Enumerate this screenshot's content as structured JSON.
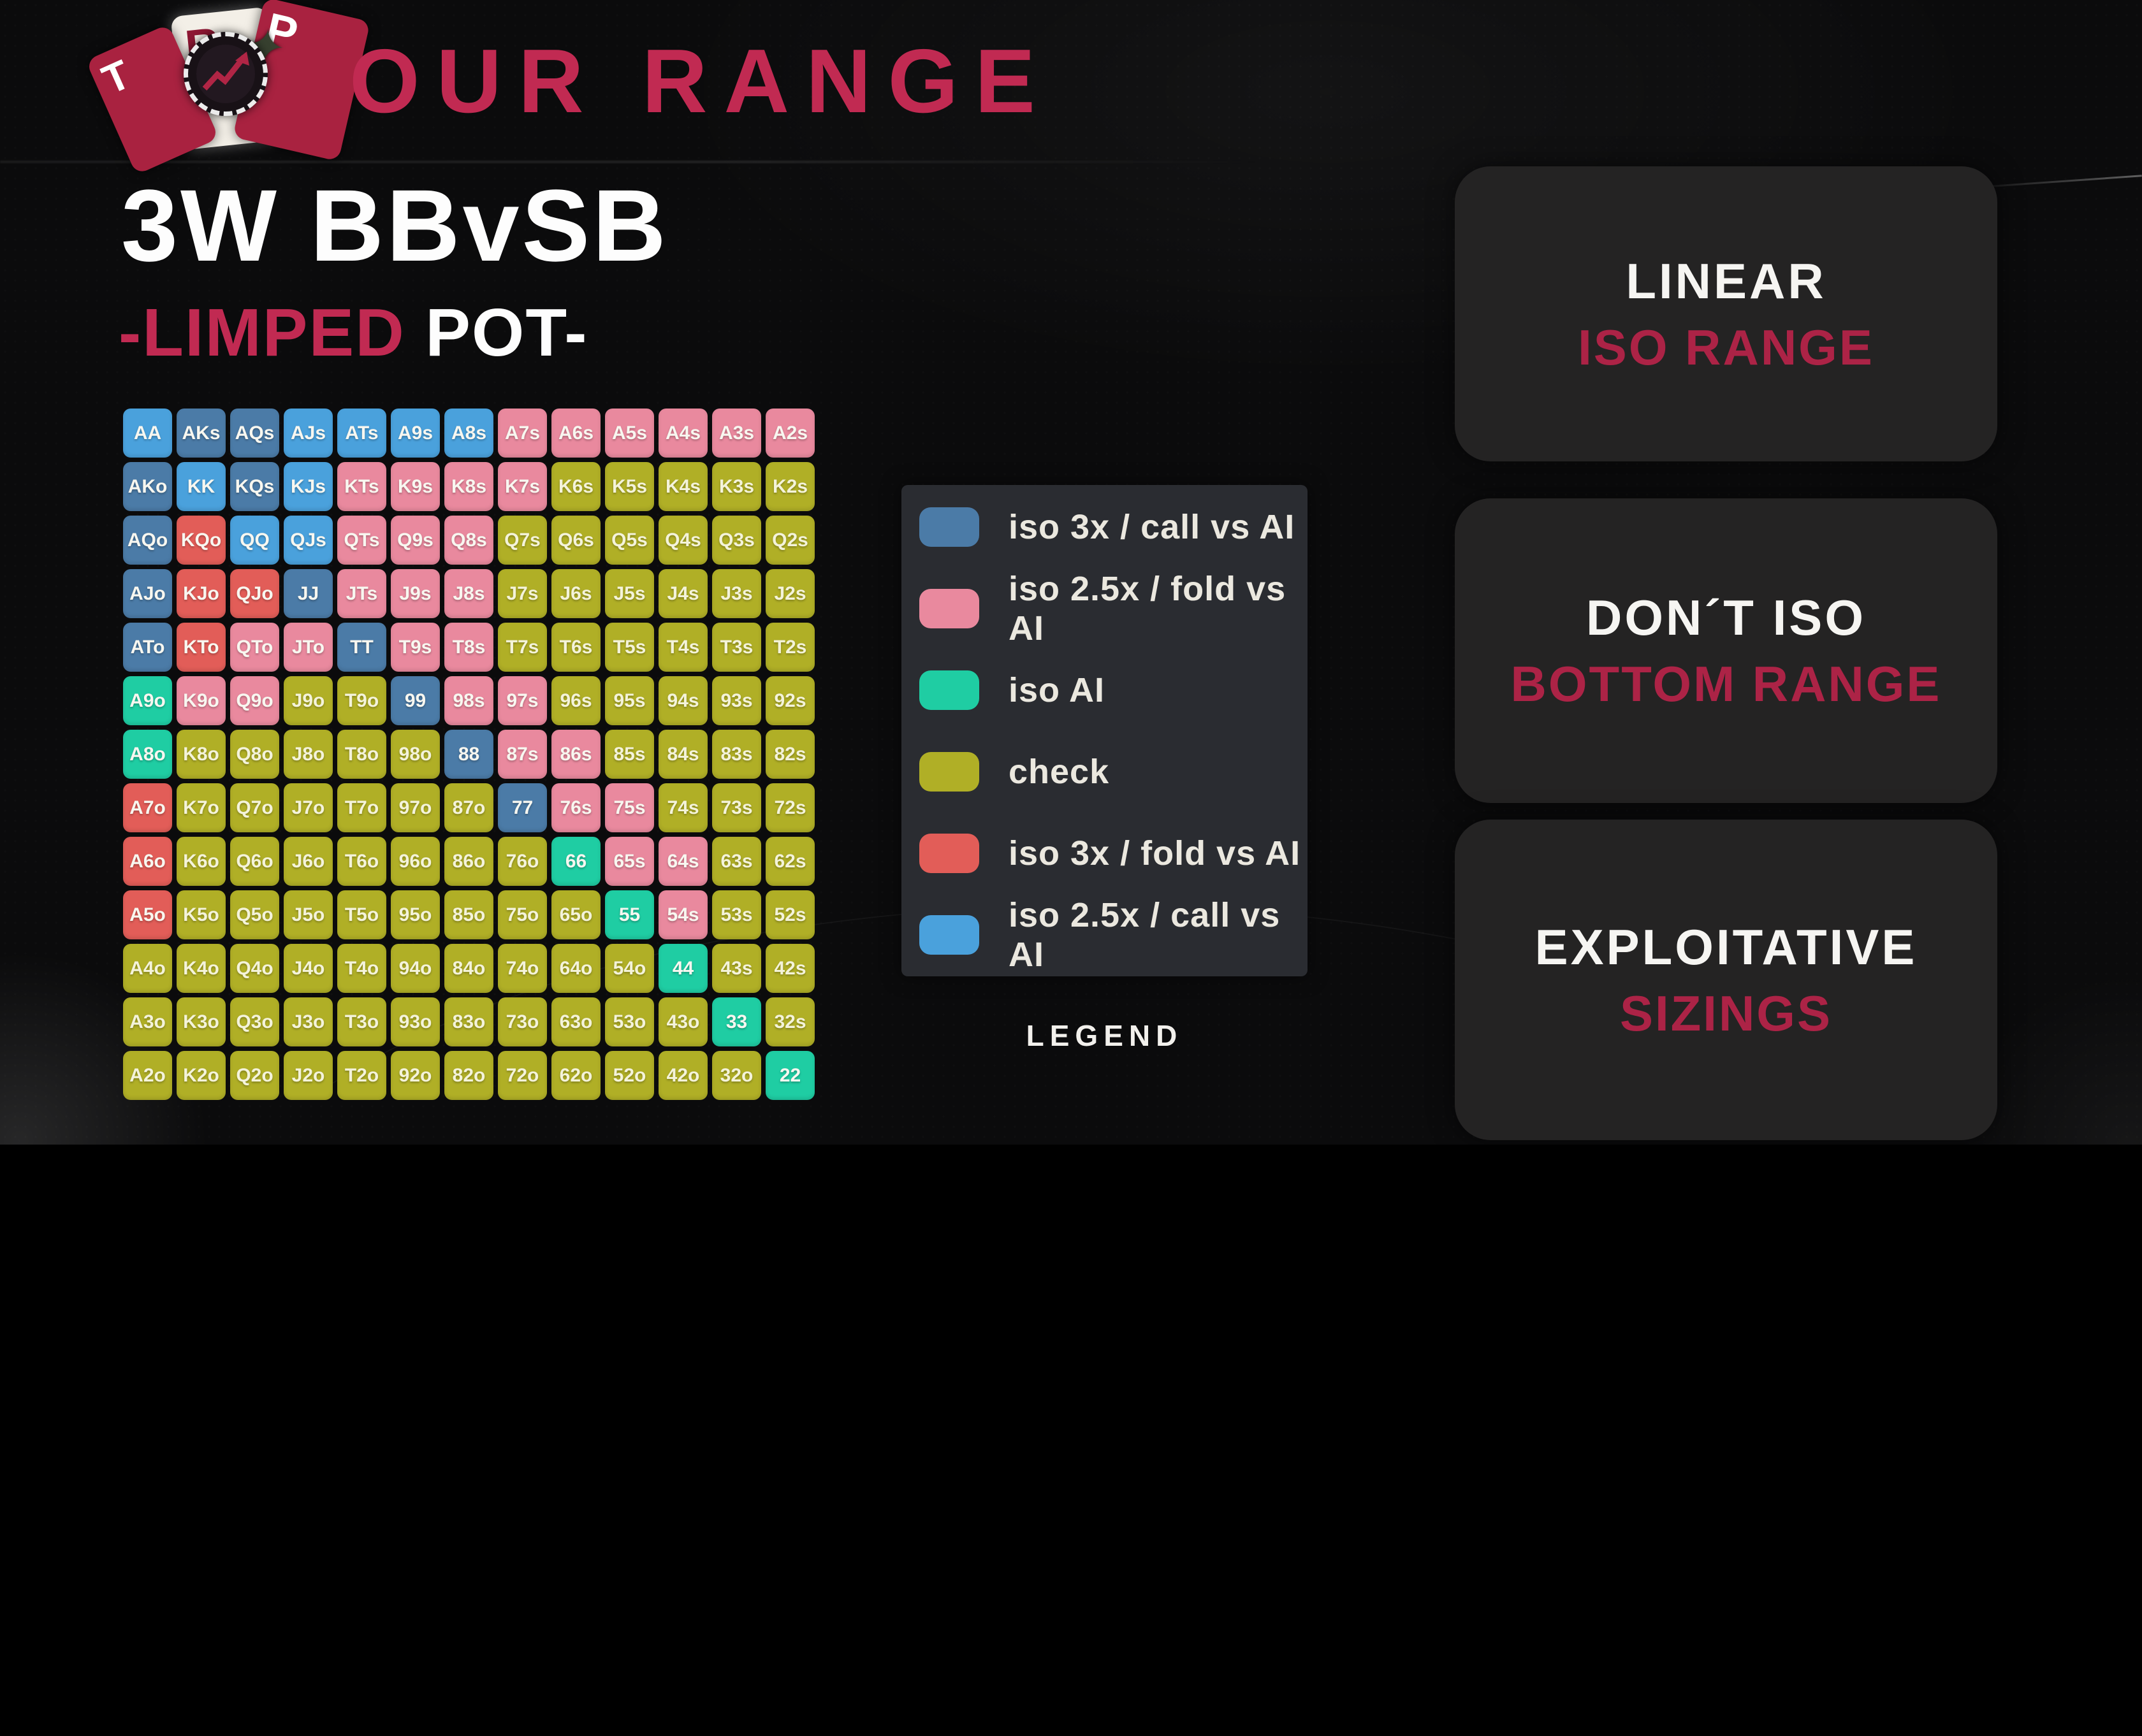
{
  "title": "OUR RANGE",
  "heading": {
    "line1": "3W BBvSB",
    "line2_accent": "-LIMPED",
    "line2_rest": " POT-"
  },
  "logo": {
    "letters": [
      "T",
      "B",
      "P"
    ],
    "chip_icon": "poker-chip-trend-arrow",
    "star_glyph": "✦"
  },
  "colors": {
    "accent": "#c12a52",
    "accent_dark": "#ac2346",
    "iso3x_call": "#4b7ba7",
    "iso25_fold": "#e9899e",
    "iso_ai": "#1fcda3",
    "check": "#b0af26",
    "iso3x_fold": "#e25d58",
    "iso25_call": "#4aa1dc",
    "legend_panel_bg": "#2a2c31",
    "side_box_bg": "#242323",
    "page_bg": "#0b0b0c"
  },
  "grid": {
    "action_colors": {
      "S": "iso3x_call",
      "P": "iso25_fold",
      "T": "iso_ai",
      "C": "check",
      "R": "iso3x_fold",
      "B": "iso25_call"
    },
    "rows": [
      [
        [
          "AA",
          "B"
        ],
        [
          "AKs",
          "S"
        ],
        [
          "AQs",
          "S"
        ],
        [
          "AJs",
          "B"
        ],
        [
          "ATs",
          "B"
        ],
        [
          "A9s",
          "B"
        ],
        [
          "A8s",
          "B"
        ],
        [
          "A7s",
          "P"
        ],
        [
          "A6s",
          "P"
        ],
        [
          "A5s",
          "P"
        ],
        [
          "A4s",
          "P"
        ],
        [
          "A3s",
          "P"
        ],
        [
          "A2s",
          "P"
        ]
      ],
      [
        [
          "AKo",
          "S"
        ],
        [
          "KK",
          "B"
        ],
        [
          "KQs",
          "S"
        ],
        [
          "KJs",
          "B"
        ],
        [
          "KTs",
          "P"
        ],
        [
          "K9s",
          "P"
        ],
        [
          "K8s",
          "P"
        ],
        [
          "K7s",
          "P"
        ],
        [
          "K6s",
          "C"
        ],
        [
          "K5s",
          "C"
        ],
        [
          "K4s",
          "C"
        ],
        [
          "K3s",
          "C"
        ],
        [
          "K2s",
          "C"
        ]
      ],
      [
        [
          "AQo",
          "S"
        ],
        [
          "KQo",
          "R"
        ],
        [
          "QQ",
          "B"
        ],
        [
          "QJs",
          "B"
        ],
        [
          "QTs",
          "P"
        ],
        [
          "Q9s",
          "P"
        ],
        [
          "Q8s",
          "P"
        ],
        [
          "Q7s",
          "C"
        ],
        [
          "Q6s",
          "C"
        ],
        [
          "Q5s",
          "C"
        ],
        [
          "Q4s",
          "C"
        ],
        [
          "Q3s",
          "C"
        ],
        [
          "Q2s",
          "C"
        ]
      ],
      [
        [
          "AJo",
          "S"
        ],
        [
          "KJo",
          "R"
        ],
        [
          "QJo",
          "R"
        ],
        [
          "JJ",
          "S"
        ],
        [
          "JTs",
          "P"
        ],
        [
          "J9s",
          "P"
        ],
        [
          "J8s",
          "P"
        ],
        [
          "J7s",
          "C"
        ],
        [
          "J6s",
          "C"
        ],
        [
          "J5s",
          "C"
        ],
        [
          "J4s",
          "C"
        ],
        [
          "J3s",
          "C"
        ],
        [
          "J2s",
          "C"
        ]
      ],
      [
        [
          "ATo",
          "S"
        ],
        [
          "KTo",
          "R"
        ],
        [
          "QTo",
          "P"
        ],
        [
          "JTo",
          "P"
        ],
        [
          "TT",
          "S"
        ],
        [
          "T9s",
          "P"
        ],
        [
          "T8s",
          "P"
        ],
        [
          "T7s",
          "C"
        ],
        [
          "T6s",
          "C"
        ],
        [
          "T5s",
          "C"
        ],
        [
          "T4s",
          "C"
        ],
        [
          "T3s",
          "C"
        ],
        [
          "T2s",
          "C"
        ]
      ],
      [
        [
          "A9o",
          "T"
        ],
        [
          "K9o",
          "P"
        ],
        [
          "Q9o",
          "P"
        ],
        [
          "J9o",
          "C"
        ],
        [
          "T9o",
          "C"
        ],
        [
          "99",
          "S"
        ],
        [
          "98s",
          "P"
        ],
        [
          "97s",
          "P"
        ],
        [
          "96s",
          "C"
        ],
        [
          "95s",
          "C"
        ],
        [
          "94s",
          "C"
        ],
        [
          "93s",
          "C"
        ],
        [
          "92s",
          "C"
        ]
      ],
      [
        [
          "A8o",
          "T"
        ],
        [
          "K8o",
          "C"
        ],
        [
          "Q8o",
          "C"
        ],
        [
          "J8o",
          "C"
        ],
        [
          "T8o",
          "C"
        ],
        [
          "98o",
          "C"
        ],
        [
          "88",
          "S"
        ],
        [
          "87s",
          "P"
        ],
        [
          "86s",
          "P"
        ],
        [
          "85s",
          "C"
        ],
        [
          "84s",
          "C"
        ],
        [
          "83s",
          "C"
        ],
        [
          "82s",
          "C"
        ]
      ],
      [
        [
          "A7o",
          "R"
        ],
        [
          "K7o",
          "C"
        ],
        [
          "Q7o",
          "C"
        ],
        [
          "J7o",
          "C"
        ],
        [
          "T7o",
          "C"
        ],
        [
          "97o",
          "C"
        ],
        [
          "87o",
          "C"
        ],
        [
          "77",
          "S"
        ],
        [
          "76s",
          "P"
        ],
        [
          "75s",
          "P"
        ],
        [
          "74s",
          "C"
        ],
        [
          "73s",
          "C"
        ],
        [
          "72s",
          "C"
        ]
      ],
      [
        [
          "A6o",
          "R"
        ],
        [
          "K6o",
          "C"
        ],
        [
          "Q6o",
          "C"
        ],
        [
          "J6o",
          "C"
        ],
        [
          "T6o",
          "C"
        ],
        [
          "96o",
          "C"
        ],
        [
          "86o",
          "C"
        ],
        [
          "76o",
          "C"
        ],
        [
          "66",
          "T"
        ],
        [
          "65s",
          "P"
        ],
        [
          "64s",
          "P"
        ],
        [
          "63s",
          "C"
        ],
        [
          "62s",
          "C"
        ]
      ],
      [
        [
          "A5o",
          "R"
        ],
        [
          "K5o",
          "C"
        ],
        [
          "Q5o",
          "C"
        ],
        [
          "J5o",
          "C"
        ],
        [
          "T5o",
          "C"
        ],
        [
          "95o",
          "C"
        ],
        [
          "85o",
          "C"
        ],
        [
          "75o",
          "C"
        ],
        [
          "65o",
          "C"
        ],
        [
          "55",
          "T"
        ],
        [
          "54s",
          "P"
        ],
        [
          "53s",
          "C"
        ],
        [
          "52s",
          "C"
        ]
      ],
      [
        [
          "A4o",
          "C"
        ],
        [
          "K4o",
          "C"
        ],
        [
          "Q4o",
          "C"
        ],
        [
          "J4o",
          "C"
        ],
        [
          "T4o",
          "C"
        ],
        [
          "94o",
          "C"
        ],
        [
          "84o",
          "C"
        ],
        [
          "74o",
          "C"
        ],
        [
          "64o",
          "C"
        ],
        [
          "54o",
          "C"
        ],
        [
          "44",
          "T"
        ],
        [
          "43s",
          "C"
        ],
        [
          "42s",
          "C"
        ]
      ],
      [
        [
          "A3o",
          "C"
        ],
        [
          "K3o",
          "C"
        ],
        [
          "Q3o",
          "C"
        ],
        [
          "J3o",
          "C"
        ],
        [
          "T3o",
          "C"
        ],
        [
          "93o",
          "C"
        ],
        [
          "83o",
          "C"
        ],
        [
          "73o",
          "C"
        ],
        [
          "63o",
          "C"
        ],
        [
          "53o",
          "C"
        ],
        [
          "43o",
          "C"
        ],
        [
          "33",
          "T"
        ],
        [
          "32s",
          "C"
        ]
      ],
      [
        [
          "A2o",
          "C"
        ],
        [
          "K2o",
          "C"
        ],
        [
          "Q2o",
          "C"
        ],
        [
          "J2o",
          "C"
        ],
        [
          "T2o",
          "C"
        ],
        [
          "92o",
          "C"
        ],
        [
          "82o",
          "C"
        ],
        [
          "72o",
          "C"
        ],
        [
          "62o",
          "C"
        ],
        [
          "52o",
          "C"
        ],
        [
          "42o",
          "C"
        ],
        [
          "32o",
          "C"
        ],
        [
          "22",
          "T"
        ]
      ]
    ]
  },
  "legend": {
    "title": "LEGEND",
    "items": [
      {
        "label": "iso 3x / call vs AI",
        "color": "iso3x_call"
      },
      {
        "label": "iso 2.5x / fold vs AI",
        "color": "iso25_fold"
      },
      {
        "label": "iso AI",
        "color": "iso_ai"
      },
      {
        "label": "check",
        "color": "check"
      },
      {
        "label": "iso 3x / fold vs AI",
        "color": "iso3x_fold"
      },
      {
        "label": "iso 2.5x / call vs AI",
        "color": "iso25_call"
      }
    ]
  },
  "side_panels": [
    {
      "line1": "LINEAR",
      "line2": "ISO RANGE"
    },
    {
      "line1": "DON´T ISO",
      "line2": "BOTTOM RANGE"
    },
    {
      "line1": "EXPLOITATIVE",
      "line2": "SIZINGS"
    }
  ]
}
